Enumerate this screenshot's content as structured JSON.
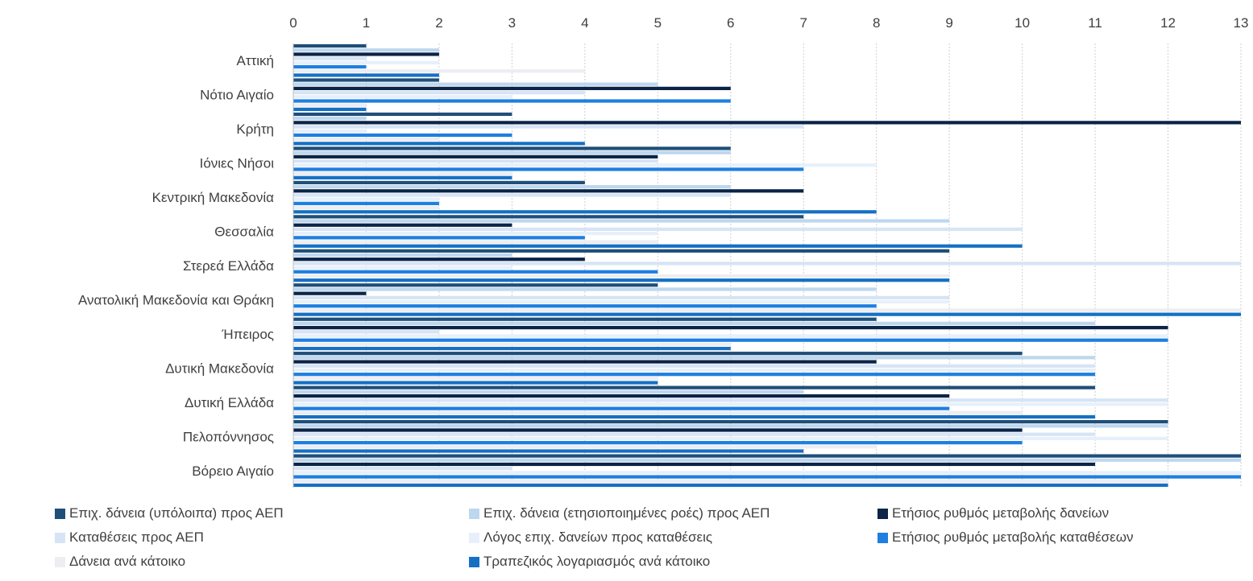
{
  "chart_data": {
    "type": "bar",
    "orientation": "horizontal",
    "axis_position": "top",
    "xlim": [
      0,
      13
    ],
    "x_ticks": [
      "0",
      "1",
      "2",
      "3",
      "4",
      "5",
      "6",
      "7",
      "8",
      "9",
      "10",
      "11",
      "12",
      "13"
    ],
    "grid": "vertical dotted",
    "legend_position": "bottom",
    "categories": [
      "Αττική",
      "Νότιο Αιγαίο",
      "Κρήτη",
      "Ιόνιες Νήσοι",
      "Κεντρική Μακεδονία",
      "Θεσσαλία",
      "Στερεά Ελλάδα",
      "Ανατολική Μακεδονία και Θράκη",
      "Ήπειρος",
      "Δυτική Μακεδονία",
      "Δυτική Ελλάδα",
      "Πελοπόννησος",
      "Βόρειο Αιγαίο"
    ],
    "series": [
      {
        "name": "Επιχ. δάνεια (υπόλοιπα) προς ΑΕΠ",
        "color": "#1F4E79",
        "values": [
          1,
          2,
          3,
          6,
          4,
          7,
          9,
          5,
          8,
          10,
          11,
          12,
          13
        ]
      },
      {
        "name": "Επιχ. δάνεια (ετησιοποιημένες ροές) προς ΑΕΠ",
        "color": "#BDD7EE",
        "values": [
          2,
          5,
          1,
          6,
          6,
          9,
          3,
          8,
          11,
          11,
          7,
          12,
          13
        ]
      },
      {
        "name": "Ετήσιος ρυθμός μεταβολής δανείων",
        "color": "#0B2447",
        "values": [
          2,
          6,
          13,
          5,
          7,
          3,
          4,
          1,
          12,
          8,
          9,
          10,
          11
        ]
      },
      {
        "name": "Καταθέσεις προς ΑΕΠ",
        "color": "#D6E4F5",
        "values": [
          1,
          4,
          7,
          5,
          6,
          10,
          13,
          9,
          2,
          11,
          12,
          11,
          3
        ]
      },
      {
        "name": "Λόγος επιχ. δανείων προς καταθέσεις",
        "color": "#E7F0FA",
        "values": [
          2,
          3,
          1,
          8,
          2,
          5,
          3,
          9,
          12,
          11,
          12,
          12,
          13
        ]
      },
      {
        "name": "Ετήσιος ρυθμός μεταβολής καταθέσεων",
        "color": "#1E7FE0",
        "values": [
          1,
          6,
          3,
          7,
          2,
          4,
          5,
          8,
          12,
          11,
          9,
          10,
          13
        ]
      },
      {
        "name": "Δάνεια ανά κάτοικο",
        "color": "#EDEDF2",
        "values": [
          4,
          1,
          2,
          3,
          2,
          5,
          9,
          13,
          6,
          5,
          10,
          8,
          12
        ]
      },
      {
        "name": "Τραπεζικός λογαριασμός ανά κάτοικο",
        "color": "#1570C4",
        "values": [
          2,
          1,
          4,
          3,
          8,
          10,
          9,
          13,
          6,
          5,
          11,
          7,
          12
        ]
      }
    ]
  }
}
